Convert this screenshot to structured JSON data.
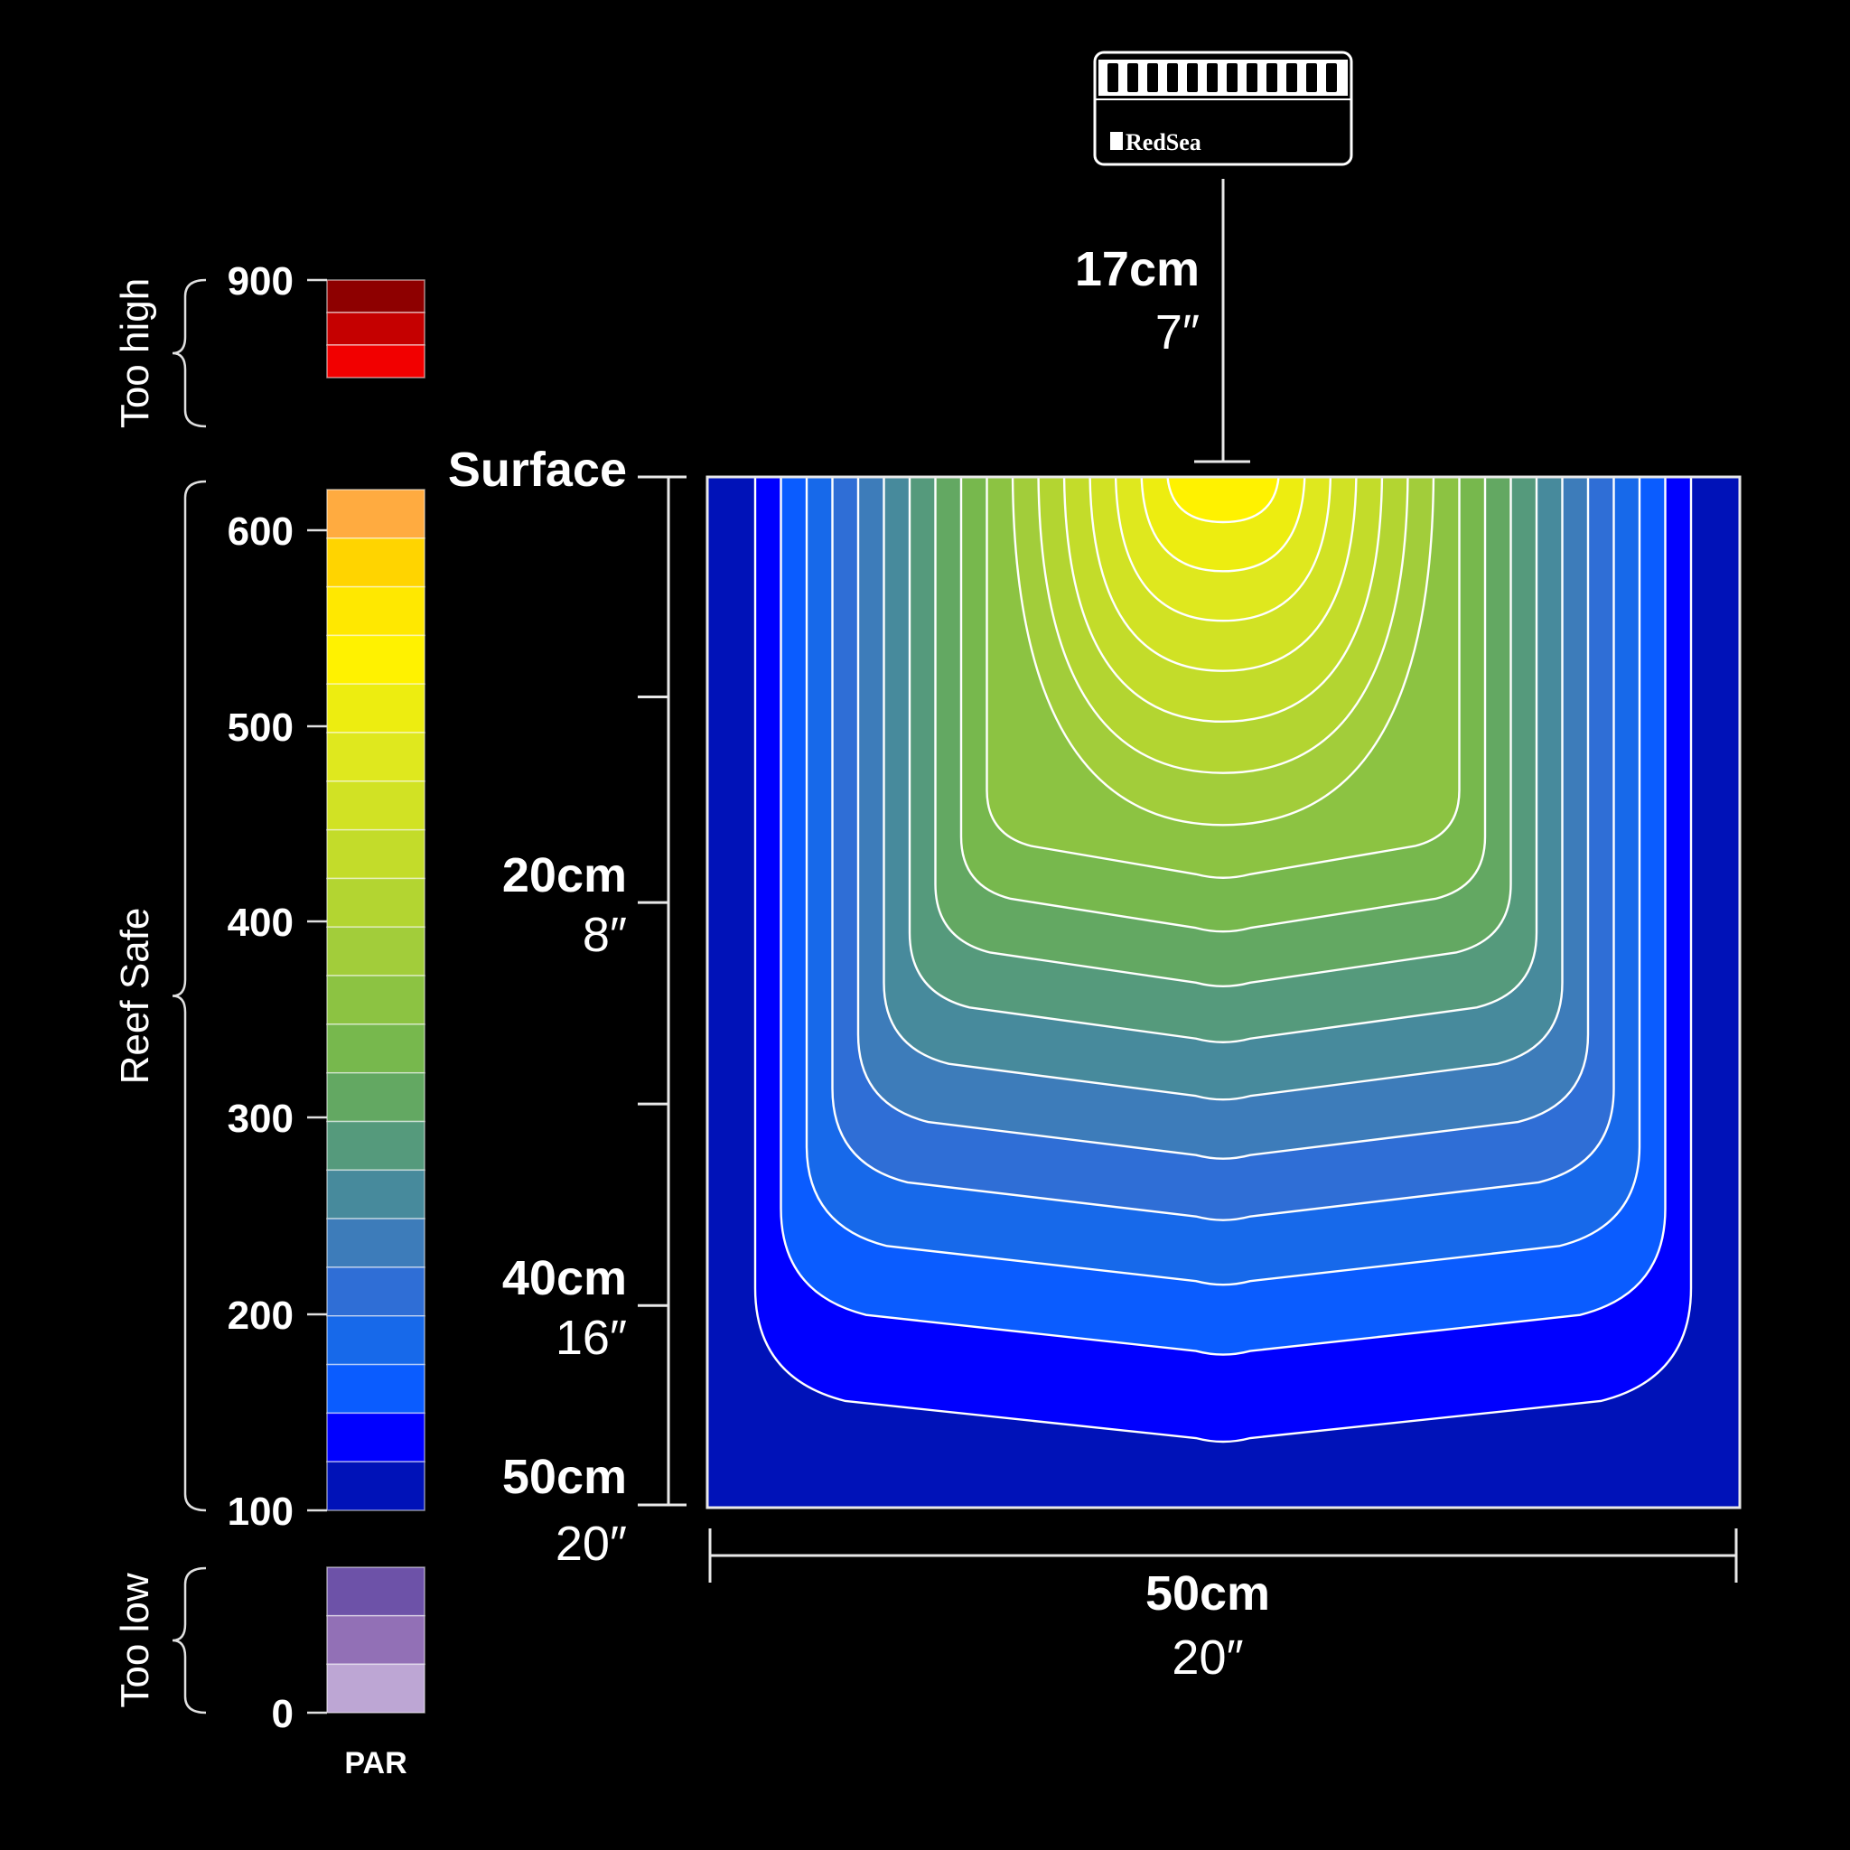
{
  "chart_data": {
    "type": "heatmap",
    "legend": {
      "label": "PAR",
      "ticks": [
        {
          "value": 900,
          "label": "900"
        },
        {
          "value": 600,
          "label": "600"
        },
        {
          "value": 500,
          "label": "500"
        },
        {
          "value": 400,
          "label": "400"
        },
        {
          "value": 300,
          "label": "300"
        },
        {
          "value": 200,
          "label": "200"
        },
        {
          "value": 100,
          "label": "100"
        },
        {
          "value": 0,
          "label": "0"
        }
      ],
      "categories": [
        {
          "name": "Too high",
          "range": [
            675,
            900
          ]
        },
        {
          "name": "Reef Safe",
          "range": [
            100,
            625
          ]
        },
        {
          "name": "Too low",
          "range": [
            0,
            75
          ]
        }
      ],
      "bands": [
        {
          "range": [
            850,
            900
          ],
          "color": "#8e0000"
        },
        {
          "range": [
            800,
            850
          ],
          "color": "#c50000"
        },
        {
          "range": [
            750,
            800
          ],
          "color": "#f20000"
        },
        {
          "range": [
            600,
            625
          ],
          "color": "#ffab40"
        },
        {
          "range": [
            575,
            600
          ],
          "color": "#ffd400"
        },
        {
          "range": [
            550,
            575
          ],
          "color": "#ffe800"
        },
        {
          "range": [
            525,
            550
          ],
          "color": "#fff200"
        },
        {
          "range": [
            500,
            525
          ],
          "color": "#eded10"
        },
        {
          "range": [
            475,
            500
          ],
          "color": "#dfe81e"
        },
        {
          "range": [
            450,
            475
          ],
          "color": "#d1e224"
        },
        {
          "range": [
            425,
            450
          ],
          "color": "#c3dc2a"
        },
        {
          "range": [
            400,
            425
          ],
          "color": "#b3d531"
        },
        {
          "range": [
            375,
            400
          ],
          "color": "#a2cd3a"
        },
        {
          "range": [
            350,
            375
          ],
          "color": "#8cc342"
        },
        {
          "range": [
            325,
            350
          ],
          "color": "#77b84d"
        },
        {
          "range": [
            300,
            325
          ],
          "color": "#63a862"
        },
        {
          "range": [
            275,
            300
          ],
          "color": "#559a7c"
        },
        {
          "range": [
            250,
            275
          ],
          "color": "#478a9c"
        },
        {
          "range": [
            225,
            250
          ],
          "color": "#3d7cba"
        },
        {
          "range": [
            200,
            225
          ],
          "color": "#2f6ed6"
        },
        {
          "range": [
            175,
            200
          ],
          "color": "#1769ea"
        },
        {
          "range": [
            150,
            175
          ],
          "color": "#0a5cff"
        },
        {
          "range": [
            125,
            150
          ],
          "color": "#0000ff"
        },
        {
          "range": [
            100,
            125
          ],
          "color": "#0012b8"
        },
        {
          "range": [
            50,
            75
          ],
          "color": "#6d52a8"
        },
        {
          "range": [
            25,
            50
          ],
          "color": "#9270b6"
        },
        {
          "range": [
            0,
            25
          ],
          "color": "#bda6d4"
        }
      ]
    },
    "depth_axis": {
      "label": "Surface",
      "ticks": [
        {
          "depth_cm": 0,
          "cm_label": "",
          "in_label": ""
        },
        {
          "depth_cm": 10.7,
          "cm_label": "",
          "in_label": ""
        },
        {
          "depth_cm": 20.7,
          "cm_label": "20cm",
          "in_label": "8″"
        },
        {
          "depth_cm": 30.5,
          "cm_label": "",
          "in_label": ""
        },
        {
          "depth_cm": 40.3,
          "cm_label": "40cm",
          "in_label": "16″"
        },
        {
          "depth_cm": 50,
          "cm_label": "50cm",
          "in_label": "20″"
        }
      ],
      "range_cm": [
        0,
        50
      ]
    },
    "width_axis": {
      "cm_label": "50cm",
      "in_label": "20″",
      "range_cm": [
        0,
        50
      ]
    },
    "light": {
      "brand": "RedSea",
      "height_cm_label": "17cm",
      "height_in_label": "7″"
    },
    "contours": {
      "peak_par": 550,
      "levels": [
        525,
        500,
        475,
        450,
        425,
        400,
        375,
        350,
        325,
        300,
        275,
        250,
        225,
        200,
        175,
        150,
        125
      ],
      "outer_color": "#0012b8"
    }
  }
}
